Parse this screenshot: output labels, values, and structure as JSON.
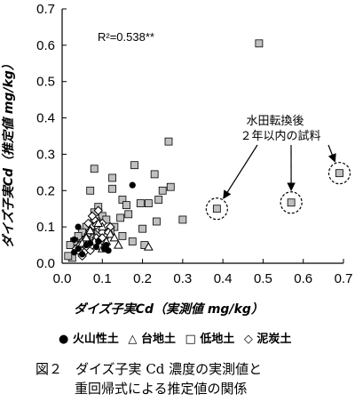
{
  "chart_data": {
    "type": "scatter",
    "xlabel": "ダイズ子実Cd（実測値 mg/kg）",
    "ylabel": "ダイズ子実Cd（推定値 mg/kg）",
    "xlim": [
      0,
      0.7
    ],
    "ylim": [
      0,
      0.7
    ],
    "xticks": [
      "0.0",
      "0.1",
      "0.2",
      "0.3",
      "0.4",
      "0.5",
      "0.6",
      "0.7"
    ],
    "yticks": [
      "0.0",
      "0.1",
      "0.2",
      "0.3",
      "0.4",
      "0.5",
      "0.6",
      "0.7"
    ],
    "r2": "R²=0.538**",
    "annotation": [
      "水田転換後",
      "２年以内の試料"
    ],
    "highlighted": [
      [
        0.385,
        0.15
      ],
      [
        0.57,
        0.167
      ],
      [
        0.69,
        0.248
      ]
    ],
    "series": [
      {
        "name": "火山性土",
        "marker": "filled-circle",
        "points": [
          [
            0.175,
            0.215
          ],
          [
            0.04,
            0.1
          ],
          [
            0.03,
            0.065
          ],
          [
            0.085,
            0.045
          ],
          [
            0.105,
            0.04
          ],
          [
            0.115,
            0.035
          ],
          [
            0.05,
            0.025
          ],
          [
            0.03,
            0.03
          ],
          [
            0.06,
            0.05
          ],
          [
            0.07,
            0.055
          ],
          [
            0.09,
            0.06
          ],
          [
            0.11,
            0.05
          ],
          [
            0.04,
            0.04
          ]
        ]
      },
      {
        "name": "台地土",
        "marker": "open-triangle",
        "points": [
          [
            0.06,
            0.07
          ],
          [
            0.08,
            0.06
          ],
          [
            0.1,
            0.1
          ],
          [
            0.14,
            0.05
          ],
          [
            0.215,
            0.045
          ],
          [
            0.12,
            0.08
          ],
          [
            0.09,
            0.11
          ],
          [
            0.07,
            0.09
          ],
          [
            0.11,
            0.06
          ],
          [
            0.13,
            0.07
          ],
          [
            0.1,
            0.04
          ],
          [
            0.05,
            0.055
          ]
        ]
      },
      {
        "name": "低地土",
        "marker": "gray-square",
        "points": [
          [
            0.49,
            0.605
          ],
          [
            0.265,
            0.335
          ],
          [
            0.18,
            0.27
          ],
          [
            0.08,
            0.26
          ],
          [
            0.23,
            0.245
          ],
          [
            0.125,
            0.235
          ],
          [
            0.125,
            0.205
          ],
          [
            0.24,
            0.175
          ],
          [
            0.195,
            0.165
          ],
          [
            0.215,
            0.165
          ],
          [
            0.27,
            0.21
          ],
          [
            0.25,
            0.2
          ],
          [
            0.07,
            0.2
          ],
          [
            0.15,
            0.175
          ],
          [
            0.16,
            0.16
          ],
          [
            0.3,
            0.12
          ],
          [
            0.235,
            0.115
          ],
          [
            0.2,
            0.095
          ],
          [
            0.165,
            0.135
          ],
          [
            0.145,
            0.125
          ],
          [
            0.175,
            0.06
          ],
          [
            0.205,
            0.05
          ],
          [
            0.15,
            0.075
          ],
          [
            0.385,
            0.15
          ],
          [
            0.57,
            0.167
          ],
          [
            0.69,
            0.248
          ],
          [
            0.09,
            0.155
          ],
          [
            0.08,
            0.14
          ],
          [
            0.1,
            0.13
          ],
          [
            0.06,
            0.1
          ],
          [
            0.05,
            0.085
          ],
          [
            0.04,
            0.075
          ],
          [
            0.03,
            0.06
          ],
          [
            0.02,
            0.05
          ],
          [
            0.025,
            0.015
          ],
          [
            0.015,
            0.02
          ],
          [
            0.11,
            0.12
          ],
          [
            0.13,
            0.1
          ],
          [
            0.09,
            0.085
          ],
          [
            0.07,
            0.075
          ],
          [
            0.12,
            0.09
          ],
          [
            0.085,
            0.115
          ],
          [
            0.06,
            0.065
          ]
        ]
      },
      {
        "name": "泥炭土",
        "marker": "open-diamond",
        "points": [
          [
            0.05,
            0.06
          ],
          [
            0.065,
            0.08
          ],
          [
            0.075,
            0.1
          ],
          [
            0.08,
            0.12
          ],
          [
            0.09,
            0.095
          ],
          [
            0.1,
            0.085
          ],
          [
            0.11,
            0.075
          ],
          [
            0.06,
            0.045
          ],
          [
            0.055,
            0.03
          ],
          [
            0.07,
            0.035
          ],
          [
            0.085,
            0.07
          ],
          [
            0.095,
            0.065
          ],
          [
            0.105,
            0.055
          ],
          [
            0.045,
            0.05
          ],
          [
            0.04,
            0.035
          ],
          [
            0.075,
            0.13
          ],
          [
            0.09,
            0.145
          ],
          [
            0.1,
            0.11
          ],
          [
            0.12,
            0.1
          ],
          [
            0.065,
            0.11
          ],
          [
            0.08,
            0.055
          ],
          [
            0.095,
            0.045
          ],
          [
            0.05,
            0.02
          ],
          [
            0.035,
            0.04
          ],
          [
            0.115,
            0.085
          ],
          [
            0.07,
            0.09
          ],
          [
            0.085,
            0.105
          ],
          [
            0.06,
            0.07
          ],
          [
            0.1,
            0.07
          ],
          [
            0.075,
            0.05
          ]
        ]
      }
    ]
  },
  "legend": [
    {
      "marker": "●",
      "label": "火山性土"
    },
    {
      "marker": "△",
      "label": "台地土"
    },
    {
      "marker": "□",
      "label": "低地土"
    },
    {
      "marker": "◇",
      "label": "泥炭土"
    }
  ],
  "caption": {
    "line1": "図２　ダイズ子実 Cd 濃度の実測値と",
    "line2": "重回帰式による推定値の関係"
  }
}
